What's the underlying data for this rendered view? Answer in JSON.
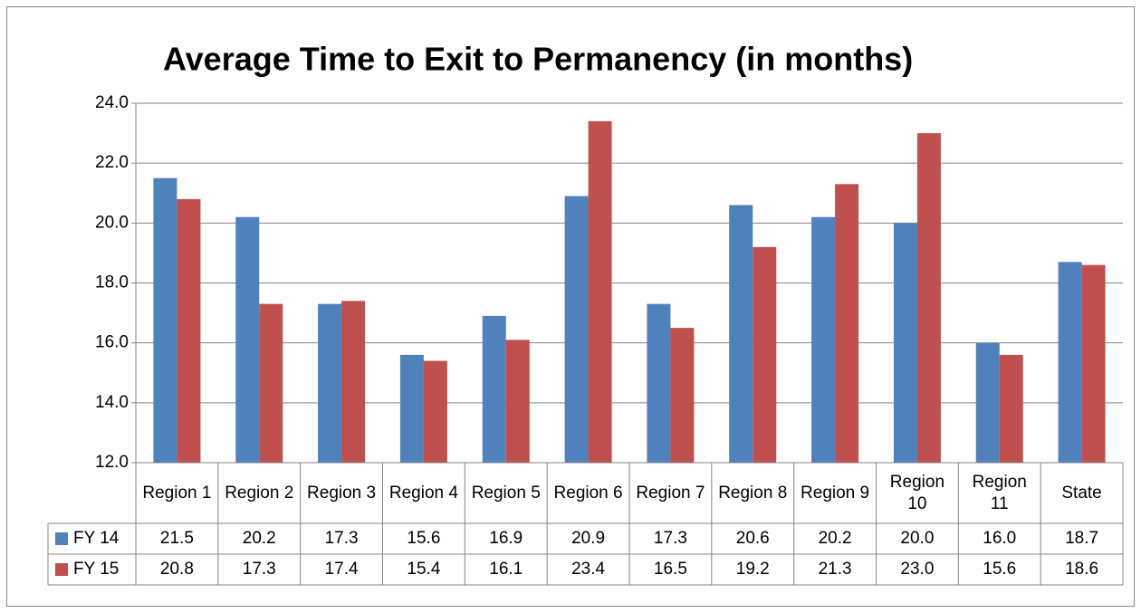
{
  "chart_data": {
    "type": "bar",
    "title": "Average Time to Exit to Permanency (in months)",
    "categories": [
      "Region 1",
      "Region 2",
      "Region 3",
      "Region 4",
      "Region 5",
      "Region 6",
      "Region 7",
      "Region 8",
      "Region 9",
      "Region 10",
      "Region 11",
      "State"
    ],
    "series": [
      {
        "name": "FY 14",
        "color": "#4f81bd",
        "values": [
          21.5,
          20.2,
          17.3,
          15.6,
          16.9,
          20.9,
          17.3,
          20.6,
          20.2,
          20.0,
          16.0,
          18.7
        ],
        "value_labels": [
          "21.5",
          "20.2",
          "17.3",
          "15.6",
          "16.9",
          "20.9",
          "17.3",
          "20.6",
          "20.2",
          "20.0",
          "16.0",
          "18.7"
        ]
      },
      {
        "name": "FY 15",
        "color": "#c0504d",
        "values": [
          20.8,
          17.3,
          17.4,
          15.4,
          16.1,
          23.4,
          16.5,
          19.2,
          21.3,
          23.0,
          15.6,
          18.6
        ],
        "value_labels": [
          "20.8",
          "17.3",
          "17.4",
          "15.4",
          "16.1",
          "23.4",
          "16.5",
          "19.2",
          "21.3",
          "23.0",
          "15.6",
          "18.6"
        ]
      }
    ],
    "ylim": [
      12,
      24
    ],
    "yticks": [
      {
        "value": 12,
        "label": "12.0"
      },
      {
        "value": 14,
        "label": "14.0"
      },
      {
        "value": 16,
        "label": "16.0"
      },
      {
        "value": 18,
        "label": "18.0"
      },
      {
        "value": 20,
        "label": "20.0"
      },
      {
        "value": 22,
        "label": "22.0"
      },
      {
        "value": 24,
        "label": "24.0"
      }
    ],
    "grid": true
  }
}
